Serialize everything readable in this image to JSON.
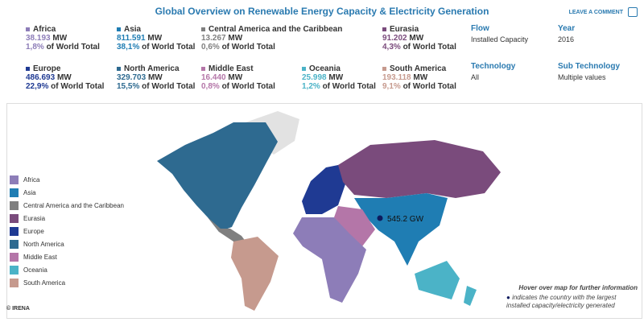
{
  "header": {
    "title": "Global Overview on Renewable Energy Capacity & Electricity Generation",
    "comment_link": "LEAVE A COMMENT"
  },
  "regions": [
    {
      "name": "Africa",
      "value": "38.193",
      "unit": "MW",
      "share": "1,8%",
      "share_text": "of World Total",
      "color": "#8d7db8"
    },
    {
      "name": "Asia",
      "value": "811.591",
      "unit": "MW",
      "share": "38,1%",
      "share_text": "of World Total",
      "color": "#1f7db3"
    },
    {
      "name": "Central America and the Caribbean",
      "value": "13.267",
      "unit": "MW",
      "share": "0,6%",
      "share_text": "of World Total",
      "color": "#7f7f7f"
    },
    {
      "name": "Eurasia",
      "value": "91.202",
      "unit": "MW",
      "share": "4,3%",
      "share_text": "of World Total",
      "color": "#7a4b7c"
    },
    {
      "name": "Europe",
      "value": "486.693",
      "unit": "MW",
      "share": "22,9%",
      "share_text": "of World Total",
      "color": "#1f3a93"
    },
    {
      "name": "North America",
      "value": "329.703",
      "unit": "MW",
      "share": "15,5%",
      "share_text": "of World Total",
      "color": "#2e6a90"
    },
    {
      "name": "Middle East",
      "value": "16.440",
      "unit": "MW",
      "share": "0,8%",
      "share_text": "of World Total",
      "color": "#b476a8"
    },
    {
      "name": "Oceania",
      "value": "25.998",
      "unit": "MW",
      "share": "1,2%",
      "share_text": "of World Total",
      "color": "#4bb3c7"
    },
    {
      "name": "South America",
      "value": "193.118",
      "unit": "MW",
      "share": "9,1%",
      "share_text": "of World Total",
      "color": "#c69a8e"
    }
  ],
  "filters": [
    {
      "label": "Flow",
      "value": "Installed Capacity"
    },
    {
      "label": "Year",
      "value": "2016"
    },
    {
      "label": "Technology",
      "value": "All"
    },
    {
      "label": "Sub Technology",
      "value": "Multiple values"
    }
  ],
  "map": {
    "marker_label": "545.2 GW",
    "hint": "Hover over map for further information",
    "note": "indicates the country with the largest installed capacity/electricity generated",
    "credit": "© IRENA"
  }
}
